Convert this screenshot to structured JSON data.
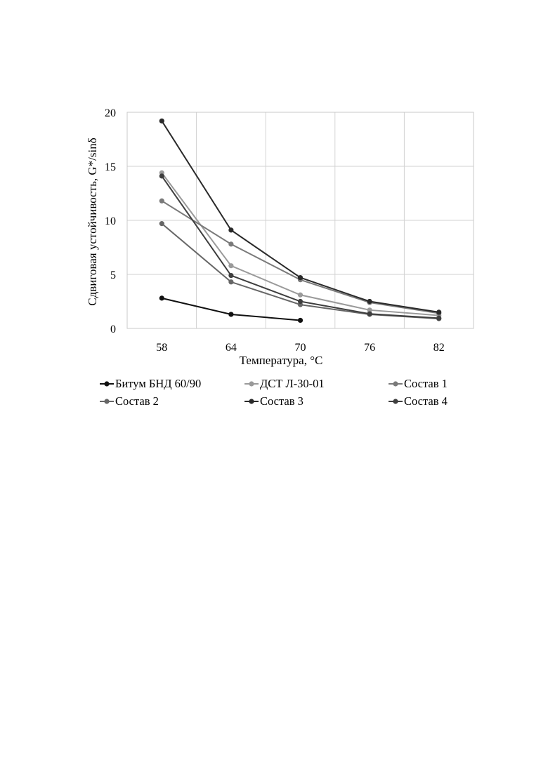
{
  "chart_data": {
    "type": "line",
    "title": "",
    "xlabel": "Температура, °C",
    "ylabel": "Сдвиговая устойчивость, G*/sinδ",
    "x": [
      58,
      64,
      70,
      76,
      82
    ],
    "x_tick_labels": [
      "58",
      "64",
      "70",
      "76",
      "82"
    ],
    "y_tick_labels": [
      "0",
      "5",
      "10",
      "15",
      "20"
    ],
    "ylim": [
      0,
      20
    ],
    "grid": true,
    "legend_position": "bottom",
    "series": [
      {
        "name": "Битум БНД 60/90",
        "color": "#111111",
        "values": [
          2.8,
          1.3,
          0.75,
          null,
          null
        ]
      },
      {
        "name": "ДСТ Л-30-01",
        "color": "#9a9a9a",
        "values": [
          14.4,
          5.8,
          3.1,
          1.7,
          1.2
        ]
      },
      {
        "name": "Состав 1",
        "color": "#7a7a7a",
        "values": [
          11.8,
          7.8,
          4.5,
          2.4,
          1.4
        ]
      },
      {
        "name": "Состав 2",
        "color": "#666666",
        "values": [
          9.7,
          4.3,
          2.2,
          1.3,
          0.9
        ]
      },
      {
        "name": "Состав 3",
        "color": "#2a2a2a",
        "values": [
          19.2,
          9.1,
          4.7,
          2.5,
          1.5
        ]
      },
      {
        "name": "Состав 4",
        "color": "#3e3e3e",
        "values": [
          14.1,
          4.9,
          2.5,
          1.35,
          0.95
        ]
      }
    ]
  }
}
